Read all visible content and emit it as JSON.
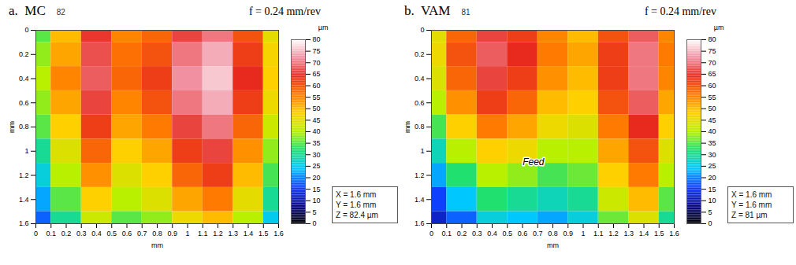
{
  "chart_data": [
    {
      "type": "heatmap",
      "panel": "a.",
      "title": "MC",
      "subtitle": "f = 0.24 mm/rev",
      "x_label": "mm",
      "y_label": "mm",
      "z_axis_label": "82",
      "info": [
        "X = 1.6 mm",
        "Y = 1.6 mm",
        "Z = 82.4 µm"
      ],
      "xlim": [
        0,
        1.6
      ],
      "xticks": [
        0,
        0.1,
        0.2,
        0.3,
        0.4,
        0.5,
        0.6,
        0.7,
        0.8,
        0.9,
        1,
        1.1,
        1.2,
        1.3,
        1.4,
        1.5,
        1.6
      ],
      "ylim": [
        0,
        1.6
      ],
      "yticks": [
        0,
        0.2,
        0.4,
        0.6,
        0.8,
        1,
        1.2,
        1.4,
        1.6
      ],
      "x": [
        0,
        0.2,
        0.4,
        0.6,
        0.8,
        1,
        1.2,
        1.4,
        1.6
      ],
      "y": [
        0,
        0.2,
        0.4,
        0.6,
        0.8,
        1,
        1.2,
        1.4,
        1.6
      ],
      "cells": [
        [
          35,
          50,
          65,
          55,
          58,
          66,
          70,
          60,
          45
        ],
        [
          38,
          52,
          67,
          57,
          60,
          70,
          74,
          62,
          47
        ],
        [
          40,
          55,
          68,
          58,
          62,
          72,
          76,
          64,
          48
        ],
        [
          38,
          52,
          66,
          55,
          60,
          70,
          74,
          62,
          46
        ],
        [
          35,
          48,
          62,
          52,
          56,
          66,
          70,
          58,
          42
        ],
        [
          30,
          44,
          58,
          48,
          52,
          62,
          66,
          54,
          38
        ],
        [
          26,
          40,
          54,
          44,
          48,
          58,
          62,
          50,
          34
        ],
        [
          22,
          35,
          48,
          40,
          44,
          52,
          56,
          45,
          30
        ],
        [
          18,
          30,
          42,
          35,
          38,
          46,
          50,
          40,
          25
        ]
      ],
      "colorbar": {
        "label": "µm",
        "lim": [
          0,
          80
        ],
        "ticks": [
          0,
          5,
          10,
          15,
          20,
          25,
          30,
          35,
          40,
          45,
          50,
          55,
          60,
          65,
          70,
          75,
          80
        ]
      }
    },
    {
      "type": "heatmap",
      "panel": "b.",
      "title": "VAM",
      "subtitle": "f = 0.24 mm/rev",
      "x_label": "mm",
      "y_label": "mm",
      "z_axis_label": "81",
      "info": [
        "X = 1.6 mm",
        "Y = 1.6 mm",
        "Z = 81 µm"
      ],
      "annotations": [
        "Feed"
      ],
      "xlim": [
        0,
        1.6
      ],
      "xticks": [
        0,
        0.1,
        0.2,
        0.3,
        0.4,
        0.5,
        0.6,
        0.7,
        0.8,
        0.9,
        1,
        1.1,
        1.2,
        1.3,
        1.4,
        1.5,
        1.6
      ],
      "ylim": [
        0,
        1.6
      ],
      "yticks": [
        0,
        0.2,
        0.4,
        0.6,
        0.8,
        1,
        1.2,
        1.4,
        1.6
      ],
      "x": [
        0,
        0.2,
        0.4,
        0.6,
        0.8,
        1,
        1.2,
        1.4,
        1.6
      ],
      "y": [
        0,
        0.2,
        0.4,
        0.6,
        0.8,
        1,
        1.2,
        1.4,
        1.6
      ],
      "cells": [
        [
          45,
          58,
          66,
          62,
          55,
          50,
          60,
          68,
          55
        ],
        [
          46,
          60,
          68,
          64,
          56,
          52,
          62,
          70,
          56
        ],
        [
          44,
          58,
          66,
          62,
          54,
          50,
          62,
          70,
          55
        ],
        [
          40,
          54,
          62,
          58,
          50,
          48,
          60,
          68,
          52
        ],
        [
          34,
          48,
          56,
          52,
          46,
          44,
          56,
          64,
          48
        ],
        [
          28,
          40,
          48,
          46,
          40,
          40,
          52,
          60,
          44
        ],
        [
          22,
          32,
          40,
          38,
          34,
          36,
          48,
          56,
          40
        ],
        [
          16,
          24,
          32,
          30,
          28,
          30,
          42,
          50,
          35
        ],
        [
          12,
          18,
          26,
          24,
          22,
          26,
          36,
          44,
          30
        ]
      ],
      "colorbar": {
        "label": "µm",
        "lim": [
          0,
          80
        ],
        "ticks": [
          0,
          5,
          10,
          15,
          20,
          25,
          30,
          35,
          40,
          45,
          50,
          55,
          60,
          65,
          70,
          75,
          80
        ]
      }
    }
  ]
}
